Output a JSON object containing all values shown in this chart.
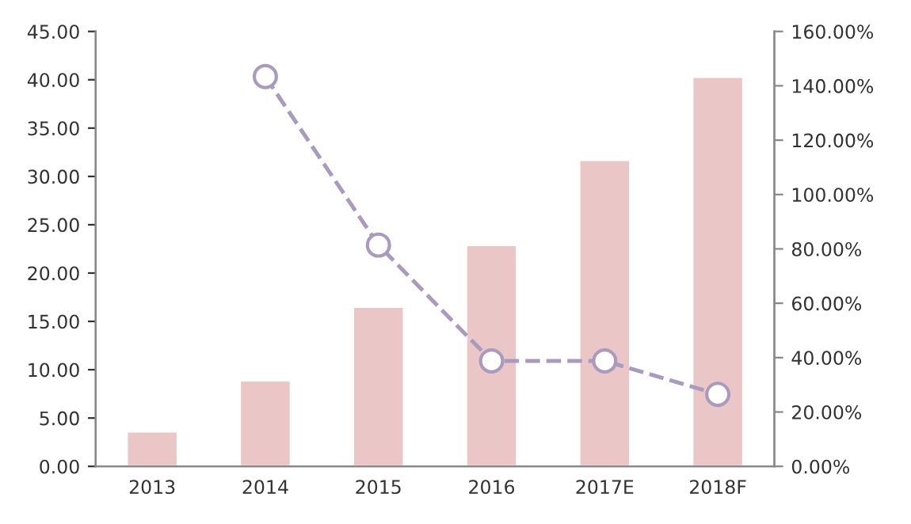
{
  "chart_data": {
    "type": "bar",
    "categories": [
      "2013",
      "2014",
      "2015",
      "2016",
      "2017E",
      "2018F"
    ],
    "series": [
      {
        "color": "#ebc6c6",
        "values": [
          3.6,
          8.9,
          16.5,
          22.9,
          31.7,
          40.3
        ]
      },
      {
        "type": "line",
        "axis": "y2",
        "color": "#a99bbd",
        "marker": "circle",
        "line_style": "dashed",
        "values": [
          null,
          143.4,
          81.4,
          38.8,
          38.8,
          26.5
        ]
      }
    ],
    "ylim": [
      0,
      45
    ],
    "yticks": [
      {
        "value": 0,
        "label": "0.00"
      },
      {
        "value": 5,
        "label": "5.00"
      },
      {
        "value": 10,
        "label": "10.00"
      },
      {
        "value": 15,
        "label": "15.00"
      },
      {
        "value": 20,
        "label": "20.00"
      },
      {
        "value": 25,
        "label": "25.00"
      },
      {
        "value": 30,
        "label": "30.00"
      },
      {
        "value": 35,
        "label": "35.00"
      },
      {
        "value": 40,
        "label": "40.00"
      },
      {
        "value": 45,
        "label": "45.00"
      }
    ],
    "y2lim": [
      0,
      160
    ],
    "y2ticks": [
      {
        "value": 0,
        "label": "0.00%"
      },
      {
        "value": 20,
        "label": "20.00%"
      },
      {
        "value": 40,
        "label": "40.00%"
      },
      {
        "value": 60,
        "label": "60.00%"
      },
      {
        "value": 80,
        "label": "80.00%"
      },
      {
        "value": 100,
        "label": "100.00%"
      },
      {
        "value": 120,
        "label": "120.00%"
      },
      {
        "value": 140,
        "label": "140.00%"
      },
      {
        "value": 160,
        "label": "160.00%"
      }
    ],
    "grid": false,
    "legend": false
  }
}
